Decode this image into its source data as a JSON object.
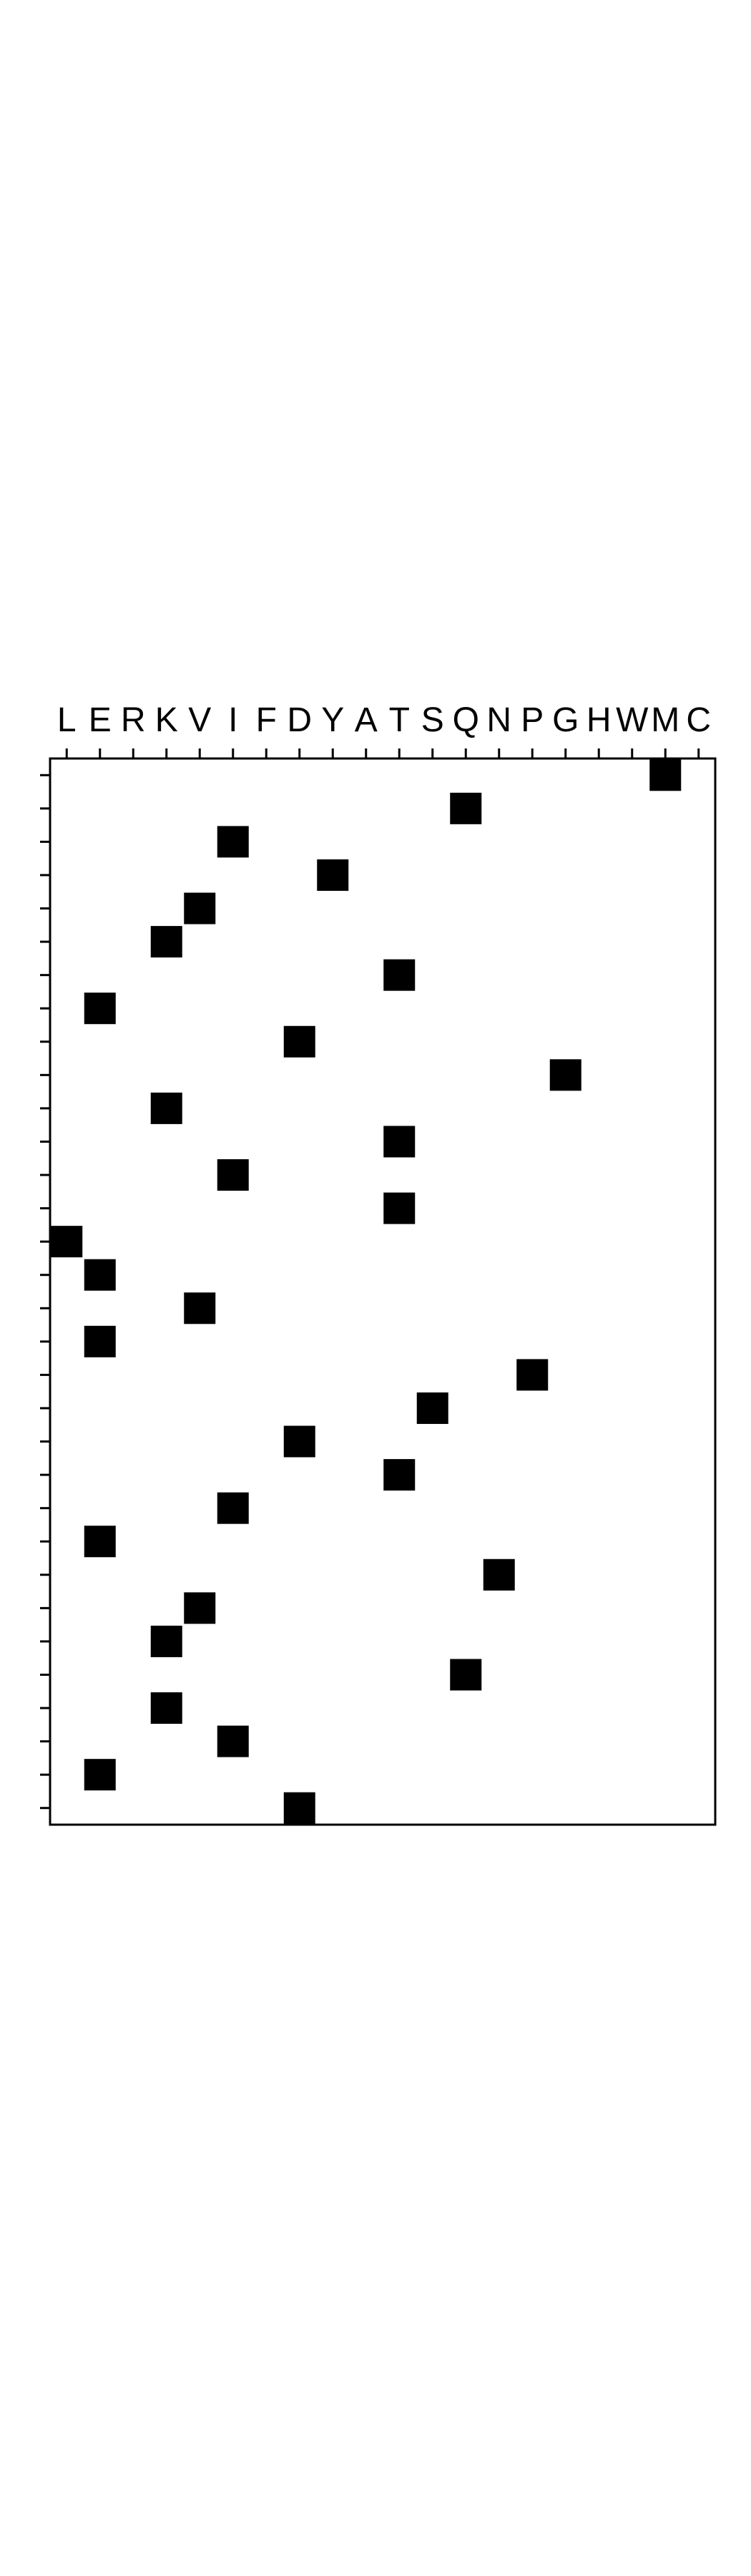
{
  "chart_data": {
    "type": "heatmap",
    "title": "",
    "xlabel": "",
    "ylabel": "",
    "x_categories": [
      "L",
      "E",
      "R",
      "K",
      "V",
      "I",
      "F",
      "D",
      "Y",
      "A",
      "T",
      "S",
      "Q",
      "N",
      "P",
      "G",
      "H",
      "W",
      "M",
      "C"
    ],
    "row_count": 32,
    "rows": [
      "M",
      "Q",
      "I",
      "Y",
      "V",
      "K",
      "T",
      "E",
      "D",
      "G",
      "K",
      "T",
      "I",
      "T",
      "L",
      "E",
      "V",
      "E",
      "P",
      "S",
      "D",
      "T",
      "I",
      "E",
      "N",
      "V",
      "K",
      "Q",
      "K",
      "I",
      "E",
      "D"
    ],
    "cell_color": "#000000",
    "background_color": "#ffffff",
    "grid": false
  }
}
